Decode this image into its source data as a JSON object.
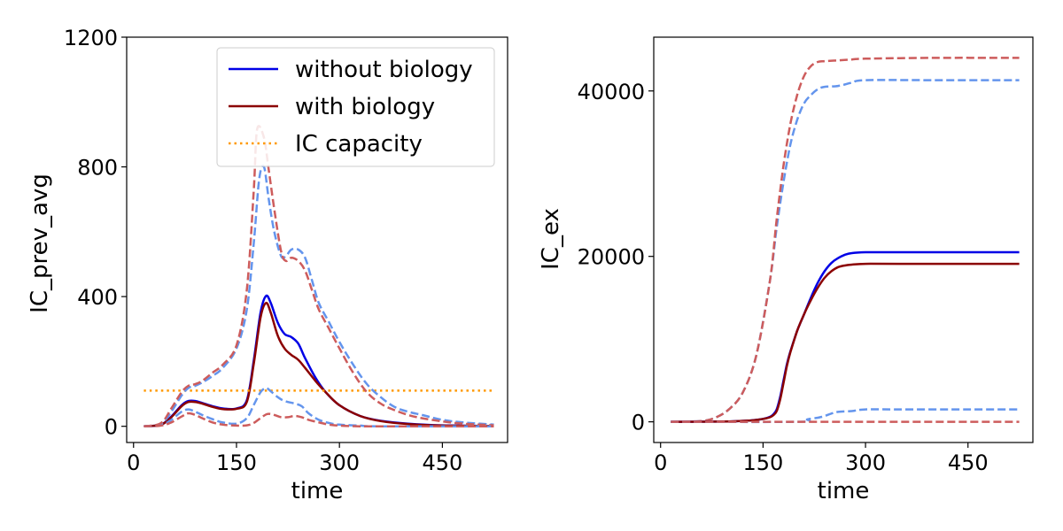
{
  "chart_data": [
    {
      "type": "line",
      "title": "",
      "xlabel": "time",
      "ylabel": "IC_prev_avg",
      "xlim": [
        -10,
        545
      ],
      "ylim": [
        -50,
        1200
      ],
      "xticks": [
        0,
        150,
        300,
        450
      ],
      "yticks": [
        0,
        400,
        800,
        1200
      ],
      "grid": false,
      "legend_position": "top-right",
      "legend": [
        {
          "label": "without biology",
          "color": "#0000e6",
          "style": "solid"
        },
        {
          "label": "with biology",
          "color": "#8b0000",
          "style": "solid"
        },
        {
          "label": "IC capacity",
          "color": "#ff9900",
          "style": "dotted"
        }
      ],
      "series": [
        {
          "name": "without biology",
          "color": "#0000e6",
          "style": "solid",
          "x": [
            15,
            40,
            55,
            70,
            80,
            90,
            100,
            115,
            130,
            150,
            165,
            175,
            185,
            193,
            200,
            210,
            220,
            230,
            240,
            250,
            265,
            280,
            300,
            330,
            360,
            400,
            450,
            525
          ],
          "y": [
            0,
            5,
            30,
            65,
            78,
            78,
            72,
            62,
            55,
            55,
            80,
            200,
            350,
            402,
            380,
            320,
            285,
            275,
            255,
            210,
            150,
            105,
            65,
            32,
            17,
            8,
            3,
            1
          ]
        },
        {
          "name": "with biology",
          "color": "#8b0000",
          "style": "solid",
          "x": [
            15,
            40,
            55,
            70,
            80,
            90,
            100,
            115,
            130,
            150,
            165,
            175,
            185,
            193,
            200,
            210,
            220,
            230,
            240,
            250,
            265,
            280,
            300,
            330,
            360,
            400,
            450,
            525
          ],
          "y": [
            0,
            5,
            28,
            62,
            75,
            75,
            70,
            60,
            53,
            54,
            75,
            190,
            335,
            380,
            350,
            280,
            240,
            220,
            205,
            180,
            140,
            105,
            65,
            32,
            16,
            7,
            2,
            1
          ]
        },
        {
          "name": "IC capacity",
          "color": "#ff9900",
          "style": "dotted",
          "x": [
            15,
            525
          ],
          "y": [
            110,
            110
          ]
        },
        {
          "color": "#6495ed",
          "style": "dashed",
          "x": [
            15,
            40,
            55,
            70,
            80,
            90,
            100,
            115,
            130,
            150,
            165,
            175,
            183,
            190,
            197,
            205,
            215,
            222,
            230,
            240,
            250,
            260,
            270,
            285,
            300,
            320,
            340,
            360,
            380,
            400,
            420,
            450,
            480,
            525
          ],
          "y": [
            0,
            8,
            45,
            95,
            118,
            125,
            135,
            155,
            180,
            240,
            360,
            560,
            760,
            800,
            700,
            600,
            525,
            525,
            545,
            545,
            520,
            450,
            380,
            320,
            260,
            190,
            130,
            90,
            60,
            45,
            35,
            20,
            12,
            5
          ]
        },
        {
          "color": "#cd5c5c",
          "style": "dashed",
          "x": [
            15,
            40,
            55,
            70,
            80,
            90,
            100,
            115,
            130,
            150,
            165,
            175,
            180,
            190,
            197,
            205,
            215,
            222,
            230,
            240,
            250,
            260,
            270,
            285,
            300,
            320,
            340,
            360,
            380,
            400,
            420,
            450,
            480,
            525
          ],
          "y": [
            0,
            10,
            55,
            105,
            125,
            130,
            140,
            165,
            190,
            250,
            420,
            720,
            915,
            890,
            790,
            670,
            540,
            510,
            520,
            510,
            480,
            420,
            360,
            300,
            240,
            165,
            105,
            70,
            50,
            35,
            25,
            15,
            8,
            3
          ]
        },
        {
          "color": "#6495ed",
          "style": "dashed",
          "x": [
            15,
            40,
            55,
            70,
            80,
            90,
            100,
            115,
            130,
            150,
            165,
            175,
            185,
            193,
            200,
            210,
            220,
            235,
            245,
            255,
            270,
            285,
            300,
            330,
            360,
            525
          ],
          "y": [
            0,
            3,
            20,
            45,
            52,
            45,
            35,
            22,
            12,
            8,
            25,
            65,
            105,
            118,
            108,
            90,
            78,
            70,
            62,
            40,
            20,
            10,
            5,
            2,
            0,
            0
          ]
        },
        {
          "color": "#cd5c5c",
          "style": "dashed",
          "x": [
            15,
            40,
            55,
            70,
            80,
            90,
            100,
            115,
            130,
            150,
            165,
            175,
            185,
            195,
            205,
            215,
            225,
            235,
            245,
            255,
            270,
            285,
            300,
            330,
            360,
            525
          ],
          "y": [
            0,
            2,
            12,
            30,
            40,
            35,
            25,
            12,
            5,
            2,
            3,
            10,
            25,
            38,
            35,
            28,
            28,
            32,
            28,
            20,
            12,
            5,
            2,
            0,
            0,
            0
          ]
        }
      ]
    },
    {
      "type": "line",
      "title": "",
      "xlabel": "time",
      "ylabel": "IC_ex",
      "xlim": [
        -10,
        545
      ],
      "ylim": [
        -2500,
        46500
      ],
      "xticks": [
        0,
        150,
        300,
        450
      ],
      "yticks": [
        0,
        20000,
        40000
      ],
      "grid": false,
      "series": [
        {
          "color": "#6495ed",
          "style": "dashed",
          "x": [
            15,
            60,
            80,
            100,
            120,
            140,
            160,
            170,
            180,
            190,
            200,
            210,
            220,
            230,
            240,
            260,
            280,
            300,
            400,
            525
          ],
          "y": [
            0,
            100,
            500,
            1500,
            3500,
            8000,
            17000,
            23500,
            29000,
            33500,
            36500,
            38500,
            39500,
            40200,
            40500,
            40600,
            41000,
            41300,
            41300,
            41300
          ]
        },
        {
          "color": "#cd5c5c",
          "style": "dashed",
          "x": [
            15,
            60,
            80,
            100,
            120,
            140,
            160,
            170,
            180,
            190,
            200,
            210,
            220,
            230,
            240,
            260,
            280,
            300,
            400,
            525
          ],
          "y": [
            0,
            100,
            500,
            1500,
            3500,
            8000,
            17000,
            24500,
            31000,
            36000,
            39500,
            41800,
            43000,
            43500,
            43600,
            43700,
            43800,
            43900,
            44000,
            44000
          ]
        },
        {
          "name": "without biology",
          "color": "#0000e6",
          "style": "solid",
          "x": [
            15,
            100,
            130,
            150,
            160,
            165,
            170,
            175,
            180,
            185,
            190,
            200,
            210,
            220,
            230,
            240,
            250,
            260,
            270,
            280,
            300,
            350,
            525
          ],
          "y": [
            0,
            50,
            150,
            350,
            600,
            900,
            1500,
            3000,
            5000,
            7000,
            8500,
            11000,
            13000,
            15000,
            16800,
            18200,
            19200,
            19800,
            20200,
            20400,
            20500,
            20500,
            20500
          ]
        },
        {
          "name": "with biology",
          "color": "#8b0000",
          "style": "solid",
          "x": [
            15,
            100,
            130,
            150,
            160,
            165,
            170,
            175,
            180,
            185,
            190,
            200,
            210,
            220,
            230,
            240,
            250,
            260,
            270,
            280,
            300,
            350,
            525
          ],
          "y": [
            0,
            50,
            150,
            350,
            550,
            800,
            1300,
            2700,
            4700,
            6800,
            8400,
            11000,
            13000,
            14700,
            16200,
            17400,
            18200,
            18700,
            18900,
            19000,
            19100,
            19100,
            19100
          ]
        },
        {
          "color": "#6495ed",
          "style": "dashed",
          "x": [
            15,
            200,
            215,
            230,
            240,
            250,
            260,
            280,
            300,
            350,
            450,
            525
          ],
          "y": [
            0,
            0,
            300,
            500,
            700,
            1000,
            1200,
            1300,
            1500,
            1500,
            1500,
            1500
          ]
        },
        {
          "color": "#cd5c5c",
          "style": "dashed",
          "x": [
            15,
            525
          ],
          "y": [
            0,
            0
          ]
        }
      ]
    }
  ]
}
